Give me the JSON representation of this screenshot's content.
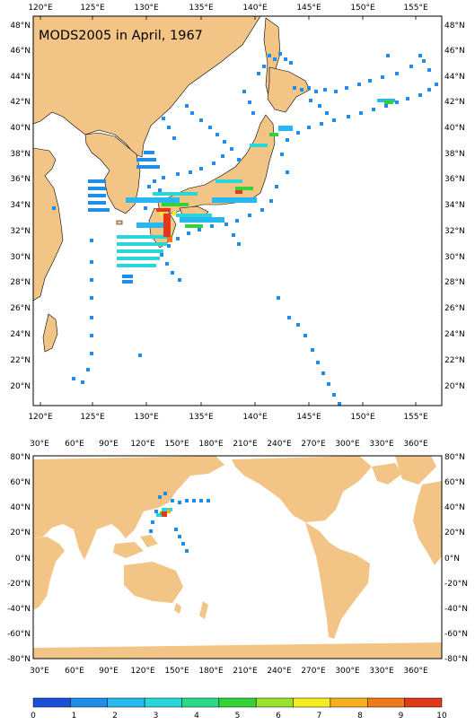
{
  "top_map": {
    "title": "MODS2005 in April, 1967",
    "lon_ticks": [
      "120°E",
      "125°E",
      "130°E",
      "135°E",
      "140°E",
      "145°E",
      "150°E",
      "155°E"
    ],
    "lat_ticks": [
      "48°N",
      "46°N",
      "44°N",
      "42°N",
      "40°N",
      "38°N",
      "36°N",
      "34°N",
      "32°N",
      "30°N",
      "28°N",
      "26°N",
      "24°N",
      "22°N",
      "20°N"
    ]
  },
  "bottom_map": {
    "lon_ticks": [
      "30°E",
      "60°E",
      "90°E",
      "120°E",
      "150°E",
      "180°E",
      "210°E",
      "240°E",
      "270°E",
      "300°E",
      "330°E",
      "360°E"
    ],
    "lat_ticks": [
      "80°N",
      "60°N",
      "40°N",
      "20°N",
      "0°N",
      "-20°N",
      "-40°N",
      "-60°N",
      "-80°N"
    ]
  },
  "colorbar": {
    "labels": [
      "0",
      "1",
      "2",
      "3",
      "4",
      "5",
      "6",
      "7",
      "8",
      "9",
      "10"
    ],
    "colors": [
      "#1a4fd6",
      "#1f8ee8",
      "#27b8f0",
      "#2ad6d8",
      "#2ad88a",
      "#34d238",
      "#9be02a",
      "#f4ee1f",
      "#f6b01e",
      "#ef7a1c",
      "#e03a1a"
    ]
  },
  "colors": {
    "land": "#f2c486",
    "ocean": "#ffffff",
    "outline": "#000000"
  }
}
